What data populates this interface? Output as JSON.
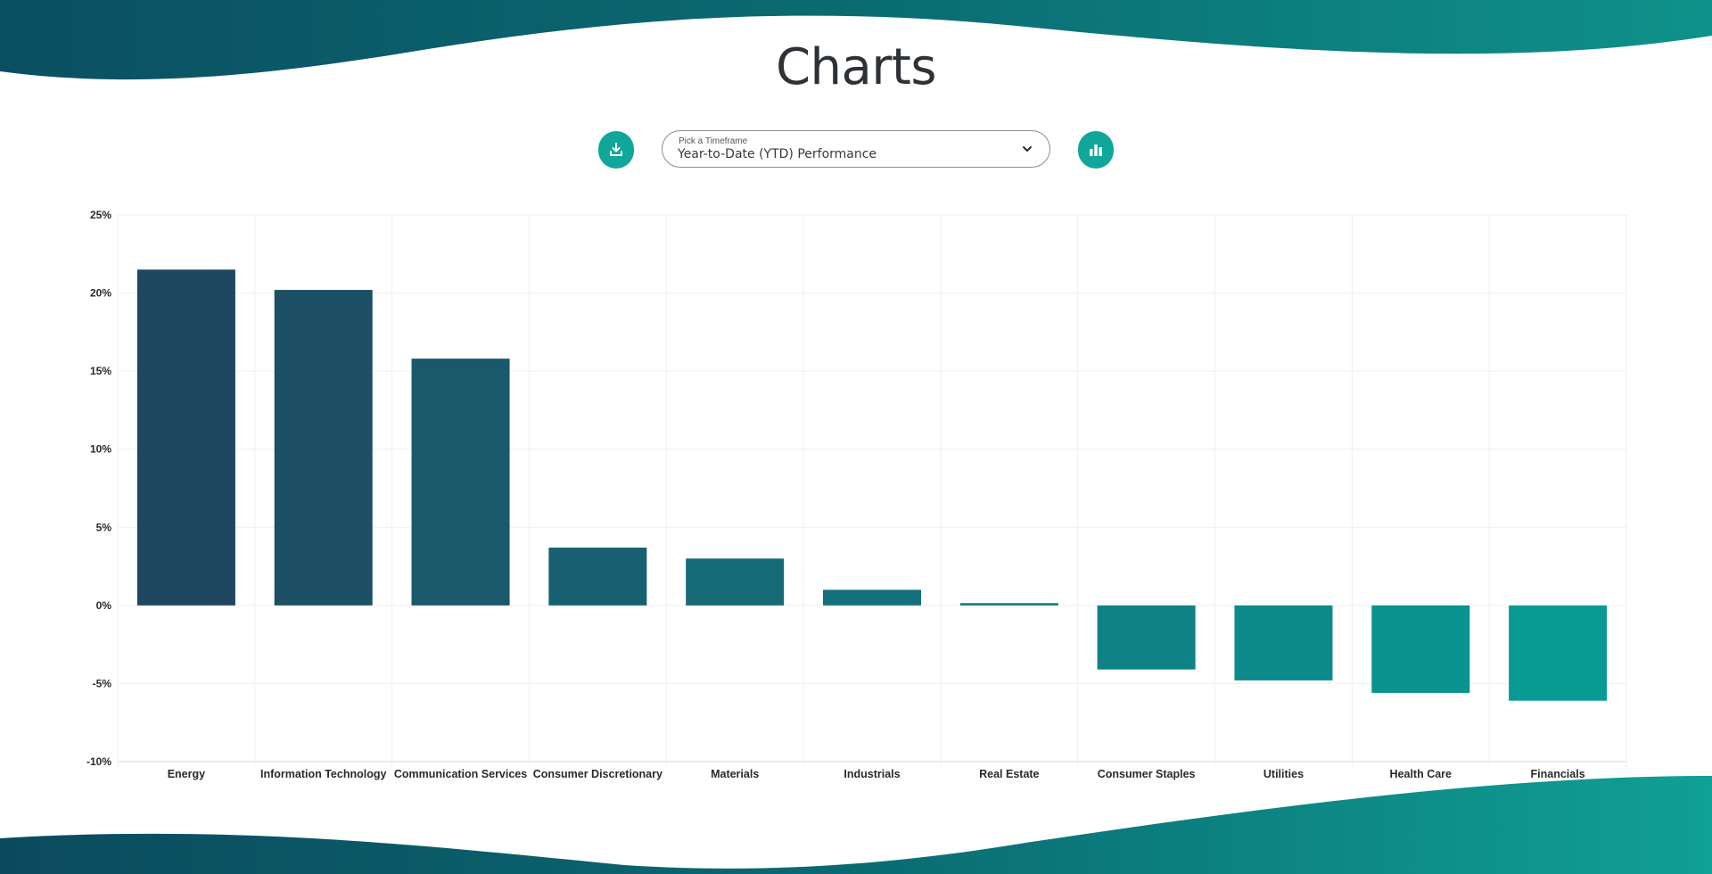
{
  "page": {
    "title": "Charts"
  },
  "toolbar": {
    "download_icon": "download-icon",
    "chart_icon": "bar-chart-icon",
    "timeframe": {
      "label": "Pick a Timeframe",
      "selected": "Year-to-Date (YTD) Performance",
      "chevron_icon": "chevron-down-icon"
    }
  },
  "colors": {
    "accent": "#10a69a",
    "bar_start": "#1f4762",
    "bar_end": "#089b94",
    "wave": "#0b6f75"
  },
  "chart_data": {
    "type": "bar",
    "title": "",
    "xlabel": "",
    "ylabel": "",
    "categories": [
      "Energy",
      "Information Technology",
      "Communication Services",
      "Consumer Discretionary",
      "Materials",
      "Industrials",
      "Real Estate",
      "Consumer Staples",
      "Utilities",
      "Health Care",
      "Financials"
    ],
    "values": [
      21.5,
      20.2,
      15.8,
      3.7,
      3.0,
      1.0,
      0.15,
      -4.1,
      -4.8,
      -5.6,
      -6.1
    ],
    "ylim": [
      -10,
      25
    ],
    "yticks": [
      25,
      20,
      15,
      10,
      5,
      0,
      -5,
      -10
    ],
    "ytick_labels": [
      "25%",
      "20%",
      "15%",
      "10%",
      "5%",
      "0%",
      "-5%",
      "-10%"
    ],
    "grid": true,
    "legend": "none"
  }
}
